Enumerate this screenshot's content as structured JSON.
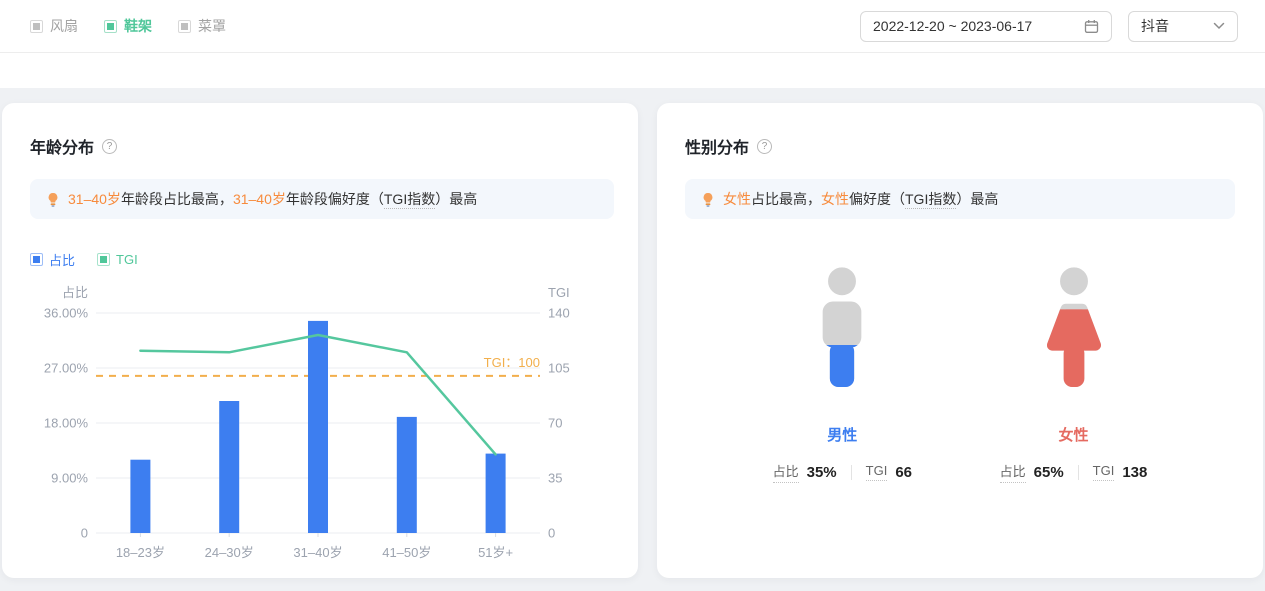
{
  "topbar": {
    "tabs": [
      {
        "label": "风扇",
        "active": false
      },
      {
        "label": "鞋架",
        "active": true
      },
      {
        "label": "菜罩",
        "active": false
      }
    ],
    "date_range": {
      "value": "2022-12-20 ~ 2023-06-17"
    },
    "platform": {
      "value": "抖音"
    }
  },
  "colors": {
    "bar_blue": "#3D7EF0",
    "line_green": "#55C79E",
    "legend_green": "#50C79A",
    "reference_orange": "#F2AF4C",
    "highlight_orange": "#F78B3D",
    "female_red": "#E56A60",
    "figure_gray": "#D3D3D3",
    "banner_bg": "#F3F7FC",
    "page_bg": "#EFF1F4"
  },
  "age_card": {
    "title": "年龄分布",
    "help_icon": "?",
    "insight": {
      "seg1": "31–40岁",
      "seg2": "年龄段占比最高，",
      "seg3": "31–40岁",
      "seg4": "年龄段偏好度（",
      "seg5": "TGI指数",
      "seg6": "）最高"
    },
    "legend": [
      {
        "label": "占比",
        "color": "#3D7EF0"
      },
      {
        "label": "TGI",
        "color": "#50C79A"
      }
    ]
  },
  "chart_data": {
    "type": "bar",
    "title": "年龄分布",
    "categories": [
      "18–23岁",
      "24–30岁",
      "31–40岁",
      "41–50岁",
      "51岁+"
    ],
    "series": [
      {
        "name": "占比",
        "type": "bar",
        "axis": "left",
        "unit": "%",
        "color": "#3D7EF0",
        "values": [
          12,
          21.6,
          34.7,
          19,
          13
        ]
      },
      {
        "name": "TGI",
        "type": "line",
        "axis": "right",
        "color": "#55C79E",
        "values": [
          116,
          115,
          126,
          115,
          50
        ]
      }
    ],
    "left_axis": {
      "label": "占比",
      "min": 0,
      "max": 36,
      "ticks": [
        "36.00%",
        "27.00%",
        "18.00%",
        "9.00%",
        "0"
      ]
    },
    "right_axis": {
      "label": "TGI",
      "min": 0,
      "max": 140,
      "ticks": [
        "140",
        "105",
        "70",
        "35",
        "0"
      ]
    },
    "reference_line": {
      "axis": "right",
      "value": 100,
      "label": "TGI：100",
      "color": "#F2AF4C",
      "style": "dashed"
    },
    "grid": true,
    "legend_position": "top-left"
  },
  "gender_card": {
    "title": "性别分布",
    "help_icon": "?",
    "insight": {
      "seg1": "女性",
      "seg2": "占比最高，",
      "seg3": "女性",
      "seg4": "偏好度（",
      "seg5": "TGI指数",
      "seg6": "）最高"
    },
    "genders": [
      {
        "figure": "male",
        "label": "男性",
        "color": "#3D7EF0",
        "share_label": "占比",
        "share": "35%",
        "share_pct": 35,
        "tgi_label": "TGI",
        "tgi": "66"
      },
      {
        "figure": "female",
        "label": "女性",
        "color": "#E56A60",
        "share_label": "占比",
        "share": "65%",
        "share_pct": 65,
        "tgi_label": "TGI",
        "tgi": "138"
      }
    ]
  }
}
